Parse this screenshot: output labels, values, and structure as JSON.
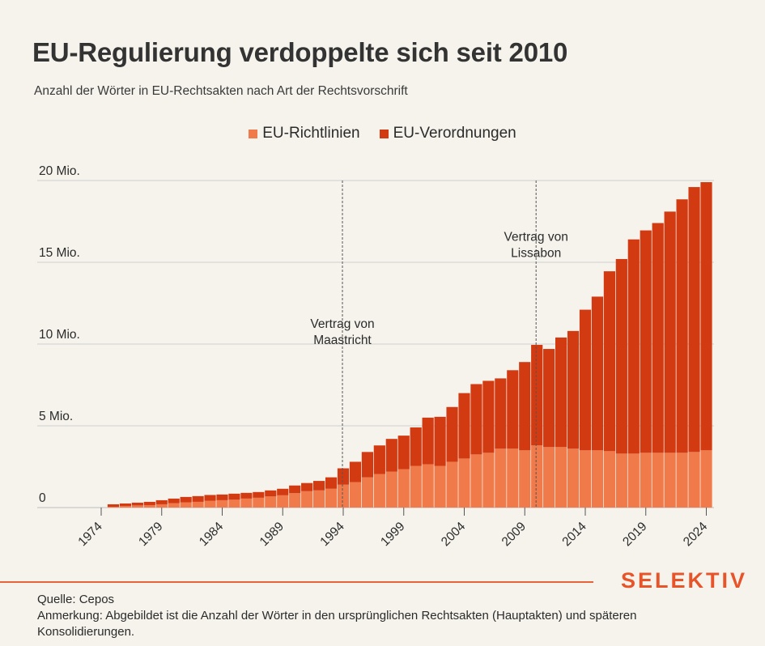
{
  "title": "EU-Regulierung verdoppelte sich seit 2010",
  "subtitle": "Anzahl der Wörter in EU-Rechtsakten nach Art der Rechtsvorschrift",
  "legend": [
    {
      "label": "EU-Richtlinien",
      "color": "#f07a4a"
    },
    {
      "label": "EU-Verordnungen",
      "color": "#d23a12"
    }
  ],
  "brand": "SELEKTIV",
  "footnote": {
    "source": "Quelle: Cepos",
    "note": "Anmerkung: Abgebildet ist die Anzahl der Wörter in den ursprünglichen Rechtsakten (Hauptakten) und späteren Konsolidierungen."
  },
  "chart_data": {
    "type": "bar",
    "stacked": true,
    "unit": "Mio. Wörter",
    "ylim": [
      0,
      20
    ],
    "ytick_labels": [
      {
        "value": 0,
        "label": "0"
      },
      {
        "value": 5,
        "label": "5 Mio."
      },
      {
        "value": 10,
        "label": "10 Mio."
      },
      {
        "value": 15,
        "label": "15 Mio."
      },
      {
        "value": 20,
        "label": "20 Mio."
      }
    ],
    "xtick_labels": [
      "1974",
      "1979",
      "1984",
      "1989",
      "1994",
      "1999",
      "2004",
      "2009",
      "2014",
      "2019",
      "2024"
    ],
    "categories": [
      1974,
      1975,
      1976,
      1977,
      1978,
      1979,
      1980,
      1981,
      1982,
      1983,
      1984,
      1985,
      1986,
      1987,
      1988,
      1989,
      1990,
      1991,
      1992,
      1993,
      1994,
      1995,
      1996,
      1997,
      1998,
      1999,
      2000,
      2001,
      2002,
      2003,
      2004,
      2005,
      2006,
      2007,
      2008,
      2009,
      2010,
      2011,
      2012,
      2013,
      2014,
      2015,
      2016,
      2017,
      2018,
      2019,
      2020,
      2021,
      2022,
      2023,
      2024
    ],
    "series": [
      {
        "name": "EU-Richtlinien",
        "color": "#f07a4a",
        "values": [
          0,
          0.05,
          0.1,
          0.13,
          0.15,
          0.2,
          0.27,
          0.32,
          0.35,
          0.42,
          0.45,
          0.48,
          0.55,
          0.6,
          0.68,
          0.75,
          0.88,
          1.0,
          1.05,
          1.15,
          1.4,
          1.55,
          1.85,
          2.05,
          2.2,
          2.35,
          2.55,
          2.65,
          2.55,
          2.8,
          3.0,
          3.25,
          3.35,
          3.6,
          3.6,
          3.5,
          3.8,
          3.7,
          3.7,
          3.6,
          3.5,
          3.5,
          3.45,
          3.3,
          3.3,
          3.35,
          3.35,
          3.35,
          3.35,
          3.4,
          3.5
        ]
      },
      {
        "name": "EU-Verordnungen",
        "color": "#d23a12",
        "values": [
          0,
          0.15,
          0.15,
          0.17,
          0.2,
          0.25,
          0.28,
          0.33,
          0.35,
          0.35,
          0.35,
          0.37,
          0.35,
          0.35,
          0.37,
          0.4,
          0.47,
          0.5,
          0.58,
          0.7,
          1.0,
          1.25,
          1.55,
          1.75,
          2.0,
          2.05,
          2.35,
          2.85,
          3.0,
          3.35,
          4.0,
          4.3,
          4.4,
          4.3,
          4.8,
          5.4,
          6.15,
          6.0,
          6.7,
          7.2,
          8.6,
          9.4,
          11.0,
          11.9,
          13.1,
          13.6,
          14.05,
          14.75,
          15.5,
          16.2,
          16.4
        ]
      }
    ],
    "annotations": [
      {
        "label_lines": [
          "Vertrag von",
          "Maastricht"
        ],
        "x": 1994,
        "y": 11
      },
      {
        "label_lines": [
          "Vertrag von",
          "Lissabon"
        ],
        "x": 2010,
        "y": 16.3
      }
    ]
  }
}
